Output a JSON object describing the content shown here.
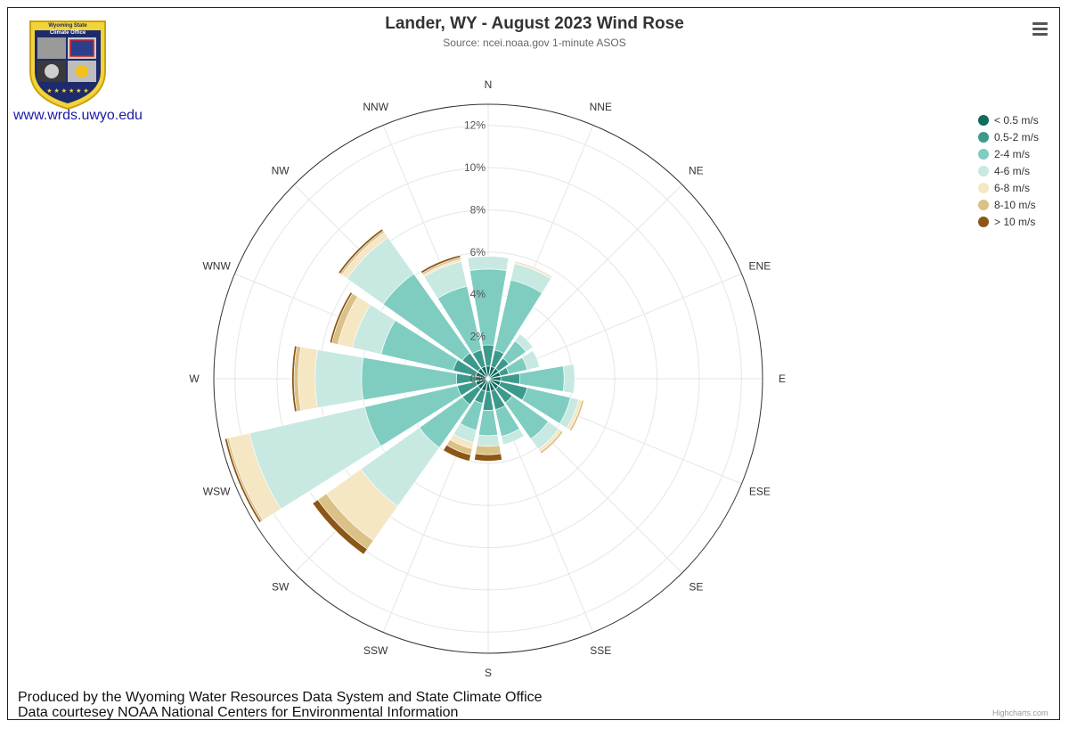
{
  "chart_data": {
    "type": "windrose",
    "title": "Lander, WY - August 2023 Wind Rose",
    "subtitle": "Source: ncei.noaa.gov 1-minute ASOS",
    "directions": [
      "N",
      "NNE",
      "NE",
      "ENE",
      "E",
      "ESE",
      "SE",
      "SSE",
      "S",
      "SSW",
      "SW",
      "WSW",
      "W",
      "WNW",
      "NW",
      "NNW"
    ],
    "series": [
      {
        "name": "< 0.5 m/s",
        "color": "#0f6b5e",
        "values": [
          0.6,
          0.6,
          0.6,
          0.6,
          0.6,
          0.6,
          0.6,
          0.6,
          0.6,
          0.6,
          0.6,
          0.6,
          0.6,
          0.6,
          0.6,
          0.6
        ]
      },
      {
        "name": "0.5-2 m/s",
        "color": "#3c9a8c",
        "values": [
          1.0,
          0.8,
          0.6,
          0.4,
          0.9,
          1.3,
          0.8,
          0.9,
          0.9,
          0.6,
          0.9,
          0.9,
          0.9,
          1.1,
          0.9,
          0.8
        ]
      },
      {
        "name": "2-4 m/s",
        "color": "#7fcdc0",
        "values": [
          3.6,
          3.4,
          1.0,
          0.9,
          2.1,
          2.1,
          2.1,
          1.3,
          1.2,
          1.3,
          2.5,
          4.5,
          4.5,
          3.5,
          4.6,
          3.1
        ]
      },
      {
        "name": "4-6 m/s",
        "color": "#c7e9e2",
        "values": [
          0.6,
          0.8,
          0.4,
          0.6,
          0.5,
          0.4,
          0.6,
          0.4,
          0.5,
          0.6,
          3.4,
          5.6,
          2.2,
          1.4,
          2.1,
          1.2
        ]
      },
      {
        "name": "6-8 m/s",
        "color": "#f5e6c4",
        "values": [
          0.0,
          0.05,
          0.0,
          0.0,
          0.0,
          0.15,
          0.15,
          0.0,
          0.0,
          0.3,
          2.0,
          1.0,
          0.8,
          0.7,
          0.3,
          0.1
        ]
      },
      {
        "name": "8-10 m/s",
        "color": "#dcc186",
        "values": [
          0.0,
          0.05,
          0.0,
          0.0,
          0.0,
          0.1,
          0.1,
          0.0,
          0.4,
          0.3,
          0.5,
          0.1,
          0.2,
          0.3,
          0.1,
          0.1
        ]
      },
      {
        "name": "> 10 m/s",
        "color": "#8b5616",
        "values": [
          0.0,
          0.0,
          0.0,
          0.0,
          0.0,
          0.0,
          0.0,
          0.0,
          0.3,
          0.3,
          0.3,
          0.1,
          0.1,
          0.1,
          0.1,
          0.1
        ]
      }
    ],
    "radial_axis": {
      "min": 0,
      "max": 13,
      "ticks": [
        0,
        2,
        4,
        6,
        8,
        10,
        12
      ],
      "tick_labels": [
        "0%",
        "2%",
        "4%",
        "6%",
        "8%",
        "10%",
        "12%"
      ]
    },
    "stacked": true,
    "legend_position": "right",
    "grid": true
  },
  "header": {
    "logo_line1": "Wyoming State",
    "logo_line2": "Climate Office",
    "logo_link": "www.wrds.uwyo.edu"
  },
  "footer": {
    "line1": "Produced by the Wyoming Water Resources Data System and State Climate Office",
    "line2": "Data courtesey NOAA National Centers for Environmental Information"
  },
  "credits": "Highcharts.com",
  "menu_icon": "hamburger-menu-icon"
}
